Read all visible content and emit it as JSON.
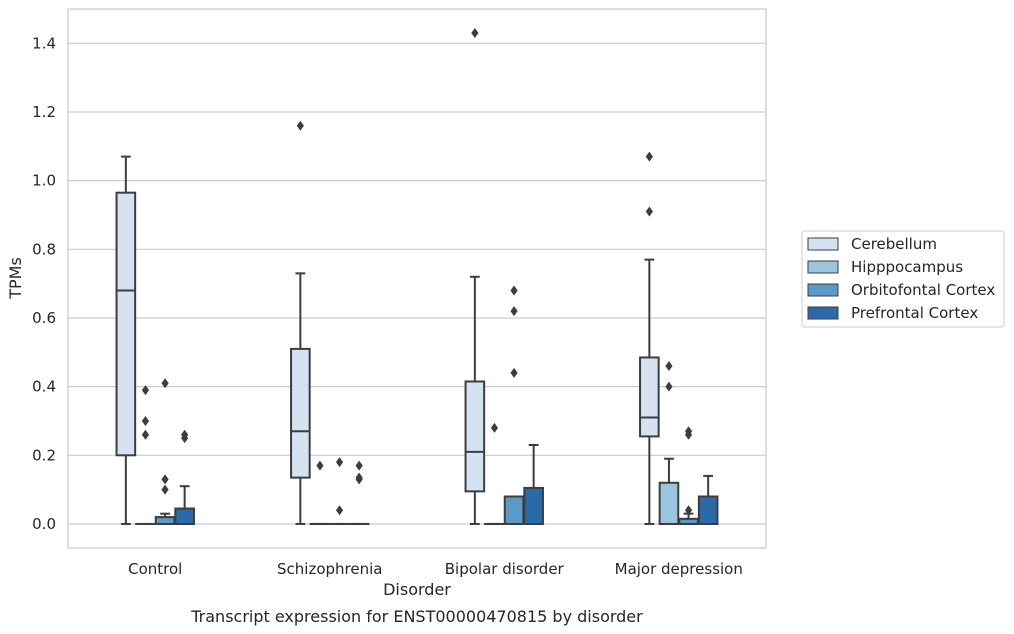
{
  "chart_data": {
    "type": "box",
    "title": "",
    "caption": "Transcript expression for ENST00000470815 by disorder",
    "xlabel": "Disorder",
    "ylabel": "TPMs",
    "ylim": [
      -0.07,
      1.5
    ],
    "yticks": [
      "0.0",
      "0.2",
      "0.4",
      "0.6",
      "0.8",
      "1.0",
      "1.2",
      "1.4"
    ],
    "grid": true,
    "legend_position": "right",
    "categories": [
      "Control",
      "Schizophrenia",
      "Bipolar disorder",
      "Major depression"
    ],
    "series": [
      {
        "name": "Cerebellum",
        "color": "#d4e2f1",
        "boxes": [
          {
            "whislo": 0.0,
            "q1": 0.2,
            "med": 0.68,
            "q3": 0.965,
            "whishi": 1.07,
            "fliers": []
          },
          {
            "whislo": 0.0,
            "q1": 0.135,
            "med": 0.27,
            "q3": 0.51,
            "whishi": 0.73,
            "fliers": [
              1.16
            ]
          },
          {
            "whislo": 0.0,
            "q1": 0.095,
            "med": 0.21,
            "q3": 0.415,
            "whishi": 0.72,
            "fliers": [
              1.43
            ]
          },
          {
            "whislo": 0.0,
            "q1": 0.255,
            "med": 0.31,
            "q3": 0.485,
            "whishi": 0.77,
            "fliers": [
              0.91,
              1.07
            ]
          }
        ]
      },
      {
        "name": "Hipppocampus",
        "color": "#9ac5e0",
        "boxes": [
          {
            "whislo": 0.0,
            "q1": 0.0,
            "med": 0.0,
            "q3": 0.0,
            "whishi": 0.0,
            "fliers": [
              0.26,
              0.3,
              0.39
            ]
          },
          {
            "whislo": 0.0,
            "q1": 0.0,
            "med": 0.0,
            "q3": 0.0,
            "whishi": 0.0,
            "fliers": [
              0.17
            ]
          },
          {
            "whislo": 0.0,
            "q1": 0.0,
            "med": 0.0,
            "q3": 0.0,
            "whishi": 0.0,
            "fliers": [
              0.28
            ]
          },
          {
            "whislo": 0.0,
            "q1": 0.0,
            "med": 0.0,
            "q3": 0.12,
            "whishi": 0.19,
            "fliers": [
              0.4,
              0.46
            ]
          }
        ]
      },
      {
        "name": "Orbitofontal Cortex",
        "color": "#5a9ac8",
        "boxes": [
          {
            "whislo": 0.0,
            "q1": 0.0,
            "med": 0.0,
            "q3": 0.02,
            "whishi": 0.03,
            "fliers": [
              0.1,
              0.13,
              0.41
            ]
          },
          {
            "whislo": 0.0,
            "q1": 0.0,
            "med": 0.0,
            "q3": 0.0,
            "whishi": 0.0,
            "fliers": [
              0.04,
              0.18
            ]
          },
          {
            "whislo": 0.0,
            "q1": 0.0,
            "med": 0.0,
            "q3": 0.08,
            "whishi": 0.08,
            "fliers": [
              0.44,
              0.62,
              0.68
            ]
          },
          {
            "whislo": 0.0,
            "q1": 0.0,
            "med": 0.0,
            "q3": 0.015,
            "whishi": 0.03,
            "fliers": [
              0.04,
              0.26,
              0.27
            ]
          }
        ]
      },
      {
        "name": "Prefrontal Cortex",
        "color": "#2b6aa8",
        "boxes": [
          {
            "whislo": 0.0,
            "q1": 0.0,
            "med": 0.0,
            "q3": 0.045,
            "whishi": 0.11,
            "fliers": [
              0.25,
              0.26
            ]
          },
          {
            "whislo": 0.0,
            "q1": 0.0,
            "med": 0.0,
            "q3": 0.0,
            "whishi": 0.0,
            "fliers": [
              0.13,
              0.135,
              0.17
            ]
          },
          {
            "whislo": 0.0,
            "q1": 0.0,
            "med": 0.0,
            "q3": 0.105,
            "whishi": 0.23,
            "fliers": []
          },
          {
            "whislo": 0.0,
            "q1": 0.0,
            "med": 0.0,
            "q3": 0.08,
            "whishi": 0.14,
            "fliers": []
          }
        ]
      }
    ]
  }
}
